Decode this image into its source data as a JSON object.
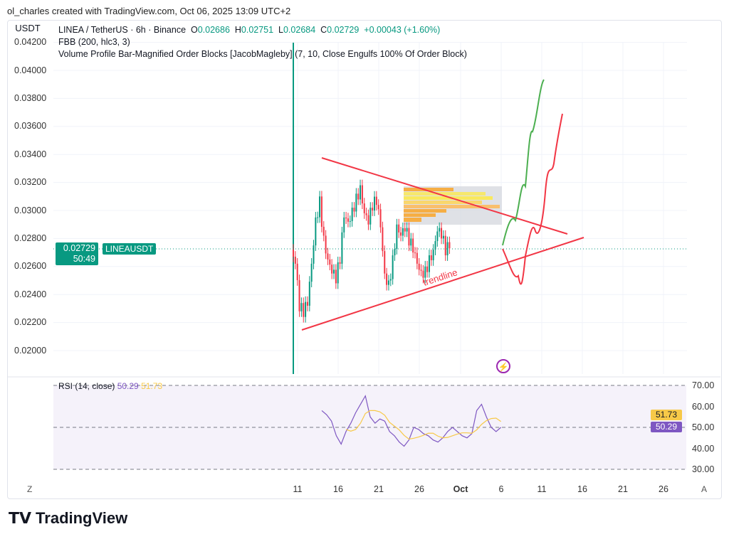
{
  "credit": "ol_charles created with TradingView.com, Oct 06, 2025 13:09 UTC+2",
  "currency_button": "USDT",
  "legend": {
    "symbol": "LINEA / TetherUS · 6h · Binance",
    "o_label": "O",
    "o": "0.02686",
    "h_label": "H",
    "h": "0.02751",
    "l_label": "L",
    "l": "0.02684",
    "c_label": "C",
    "c": "0.02729",
    "change": "+0.00043 (+1.60%)",
    "ind1": "FBB (200, hlc3, 3)",
    "ind2": "Volume Profile Bar-Magnified Order Blocks [JacobMagleby] (7, 10, Close Engulfs 100% Of Order Block)"
  },
  "price_axis": [
    "0.04200",
    "0.04000",
    "0.03800",
    "0.03600",
    "0.03400",
    "0.03200",
    "0.03000",
    "0.02800",
    "0.02600",
    "0.02400",
    "0.02200",
    "0.02000"
  ],
  "price_tag": {
    "price": "0.02729",
    "countdown": "50:49",
    "symbol": "LINEAUSDT"
  },
  "time_axis": [
    "11",
    "16",
    "21",
    "26",
    "Oct",
    "6",
    "11",
    "16",
    "21",
    "26"
  ],
  "trendline_label": "trendline",
  "rsi": {
    "label": "RSI (14, close)",
    "value": "50.29",
    "ma": "51.73",
    "axis": [
      "70.00",
      "60.00",
      "50.00",
      "40.00",
      "30.00"
    ],
    "color": "#7e57c2",
    "ma_color": "#f7c948"
  },
  "closes_12h": [
    0.0262,
    0.0228,
    0.0224,
    0.0232,
    0.0262,
    0.0295,
    0.031,
    0.0282,
    0.0265,
    0.0255,
    0.0248,
    0.0262,
    0.0295,
    0.0292,
    0.0302,
    0.0312,
    0.0318,
    0.0298,
    0.029,
    0.03,
    0.0304,
    0.0288,
    0.0255,
    0.025,
    0.0268,
    0.029,
    0.0282,
    0.0285,
    0.0275,
    0.027,
    0.0262,
    0.0257,
    0.026,
    0.0268,
    0.0272,
    0.0285,
    0.028,
    0.0268,
    0.0273
  ],
  "rsi_values": [
    58,
    56,
    53,
    46,
    42,
    48,
    52,
    57,
    61,
    65,
    55,
    52,
    54,
    53,
    48,
    46,
    43,
    41,
    44,
    50,
    49,
    47,
    46,
    44,
    43,
    45,
    48,
    50,
    48,
    46,
    45,
    47,
    58,
    61,
    55,
    50,
    48,
    50
  ],
  "colors": {
    "up": "#089981",
    "down": "#f23645",
    "projection_bull": "#4caf50",
    "projection_bear": "#f23645",
    "trendline": "#f23645"
  },
  "footer": {
    "brand": "TradingView"
  },
  "buttons": {
    "z": "Z",
    "a": "A"
  }
}
